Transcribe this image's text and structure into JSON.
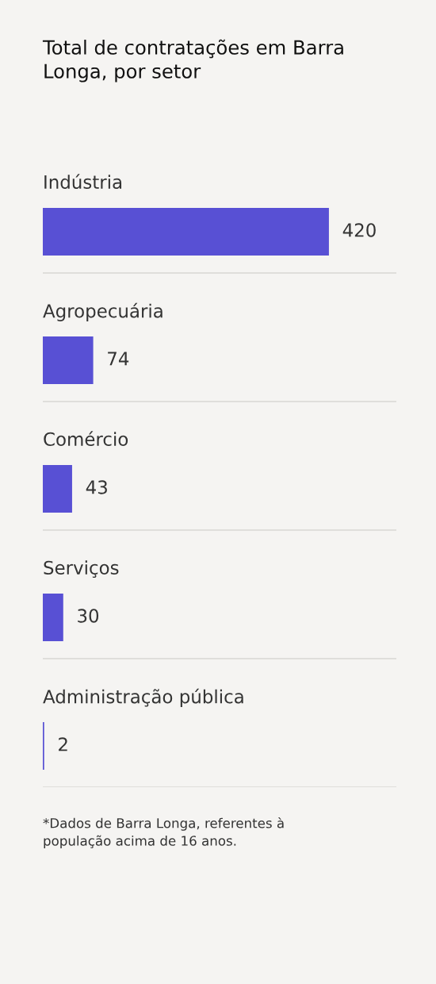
{
  "chart_data": {
    "type": "bar",
    "orientation": "horizontal",
    "title": "Total de contratações em Barra Longa, por setor",
    "categories": [
      "Indústria",
      "Agropecuária",
      "Comércio",
      "Serviços",
      "Administração pública"
    ],
    "values": [
      420,
      74,
      43,
      30,
      2
    ],
    "color": "#5850d4",
    "xlim": [
      0,
      519
    ],
    "data_labels": true,
    "grid": "y",
    "tick_labels": "y",
    "annotations": [
      "*Dados de Barra Longa, referentes à população acima de 16 anos."
    ]
  }
}
